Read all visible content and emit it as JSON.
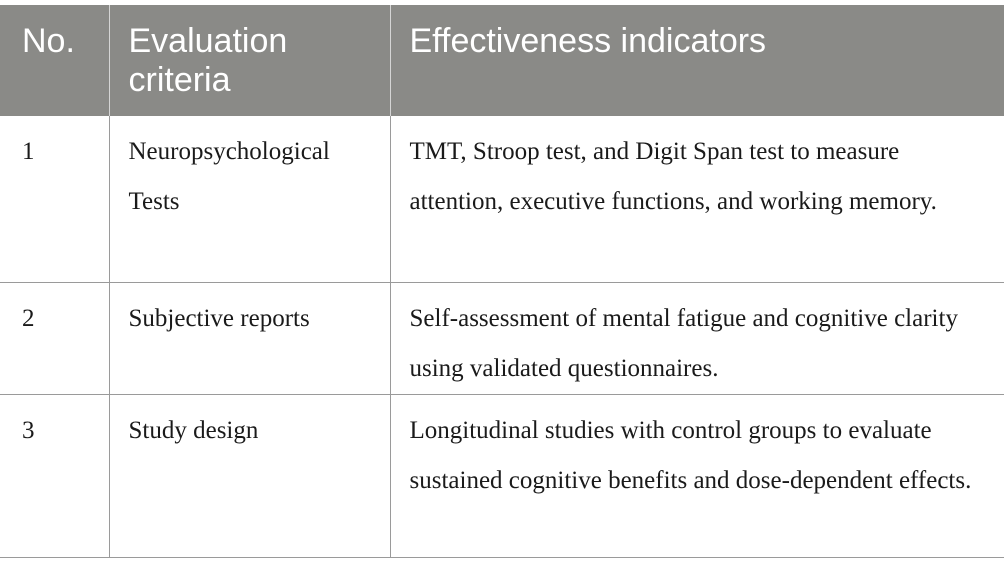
{
  "table": {
    "headers": [
      "No.",
      "Evaluation criteria",
      "Effectiveness indicators"
    ],
    "rows": [
      {
        "no": "1",
        "criteria": "Neuropsychological Tests",
        "indicators": "TMT, Stroop test, and Digit Span test to measure attention, executive functions, and working memory."
      },
      {
        "no": "2",
        "criteria": "Subjective reports",
        "indicators": "Self-assessment of mental fatigue and cognitive clarity using validated questionnaires."
      },
      {
        "no": "3",
        "criteria": "Study design",
        "indicators": "Longitudinal studies with control groups to evaluate sustained cognitive benefits and dose-dependent effects."
      }
    ]
  },
  "colors": {
    "header_bg": "#8a8a87",
    "header_text": "#ffffff",
    "border": "#9a9a9a"
  }
}
